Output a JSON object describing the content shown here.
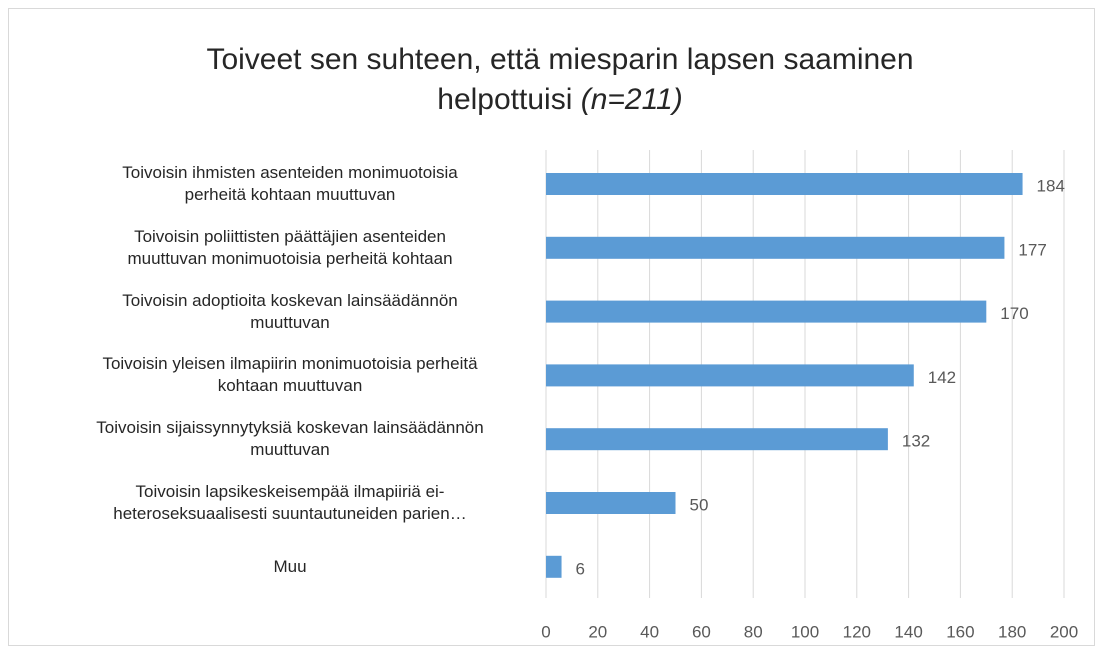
{
  "chart_data": {
    "type": "barh",
    "title": "Toiveet sen suhteen, että miesparin lapsen saaminen\nhelpottuisi",
    "title_note": "(n=211)",
    "categories": [
      "Toivoisin ihmisten asenteiden monimuotoisia\nperheitä kohtaan muuttuvan",
      "Toivoisin poliittisten päättäjien asenteiden\nmuuttuvan monimuotoisia perheitä kohtaan",
      "Toivoisin adoptioita koskevan lainsäädännön\nmuuttuvan",
      "Toivoisin yleisen ilmapiirin monimuotoisia perheitä\nkohtaan muuttuvan",
      "Toivoisin sijaissynnytyksiä koskevan lainsäädännön\nmuuttuvan",
      "Toivoisin lapsikeskeisempää ilmapiiriä ei-\nheteroseksuaalisesti suuntautuneiden parien…",
      "Muu"
    ],
    "values": [
      184,
      177,
      170,
      142,
      132,
      50,
      6
    ],
    "color": "#5b9bd5",
    "xlim": [
      0,
      200
    ],
    "xticks": [
      0,
      20,
      40,
      60,
      80,
      100,
      120,
      140,
      160,
      180,
      200
    ],
    "grid": true
  }
}
